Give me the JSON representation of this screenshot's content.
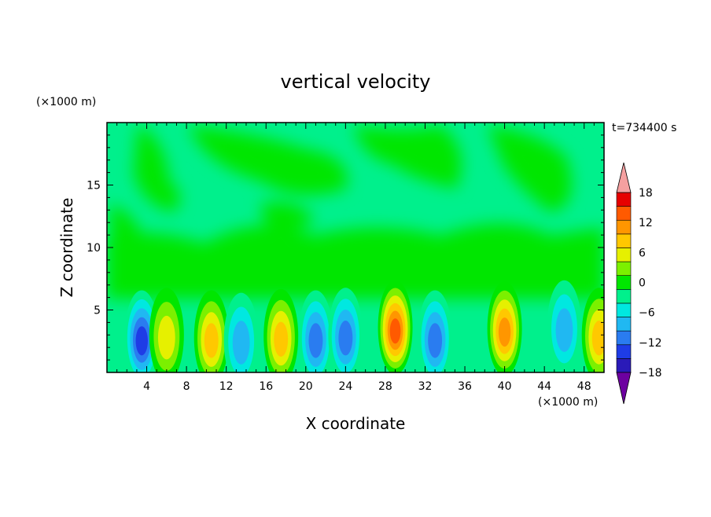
{
  "chart_data": {
    "type": "heatmap",
    "title": "vertical velocity",
    "xlabel": "X coordinate",
    "ylabel": "Z coordinate",
    "x_unit": "(×1000 m)",
    "y_unit": "(×1000 m)",
    "time_label": "t=734400 s",
    "xlim": [
      0,
      50
    ],
    "ylim": [
      0,
      20
    ],
    "x_ticks": [
      4,
      8,
      12,
      16,
      20,
      24,
      28,
      32,
      36,
      40,
      44,
      48
    ],
    "y_ticks": [
      5,
      10,
      15
    ],
    "colorbar": {
      "levels": [
        -21,
        -18,
        -15,
        -12,
        -9,
        -6,
        -3,
        0,
        3,
        6,
        9,
        12,
        15,
        18,
        21
      ],
      "tick_values": [
        18,
        12,
        6,
        0,
        -6,
        -12,
        -18
      ],
      "tick_labels": [
        "18",
        "12",
        "6",
        "0",
        "−6",
        "−12",
        "−18"
      ],
      "colors": [
        "#6d00a0",
        "#2a1ab8",
        "#1e3ce6",
        "#2a7cf0",
        "#20b8f2",
        "#00e8e0",
        "#00f08c",
        "#00e600",
        "#7cf000",
        "#e6f000",
        "#ffc800",
        "#ff9600",
        "#ff5a00",
        "#e60000",
        "#f5a0a0"
      ],
      "extend": "both"
    },
    "features": [
      {
        "x": 3.5,
        "z": 2.8,
        "w": -14
      },
      {
        "x": 6.0,
        "z": 3.0,
        "w": 7
      },
      {
        "x": 10.5,
        "z": 2.8,
        "w": 9
      },
      {
        "x": 13.5,
        "z": 2.6,
        "w": -9
      },
      {
        "x": 17.5,
        "z": 2.9,
        "w": 9
      },
      {
        "x": 21.0,
        "z": 2.8,
        "w": -10
      },
      {
        "x": 24.0,
        "z": 3.0,
        "w": -10
      },
      {
        "x": 29.0,
        "z": 3.6,
        "w": 16
      },
      {
        "x": 33.0,
        "z": 2.8,
        "w": -12
      },
      {
        "x": 40.0,
        "z": 3.5,
        "w": 13
      },
      {
        "x": 46.0,
        "z": 3.6,
        "w": -7
      },
      {
        "x": 49.5,
        "z": 3.0,
        "w": 10
      }
    ]
  }
}
